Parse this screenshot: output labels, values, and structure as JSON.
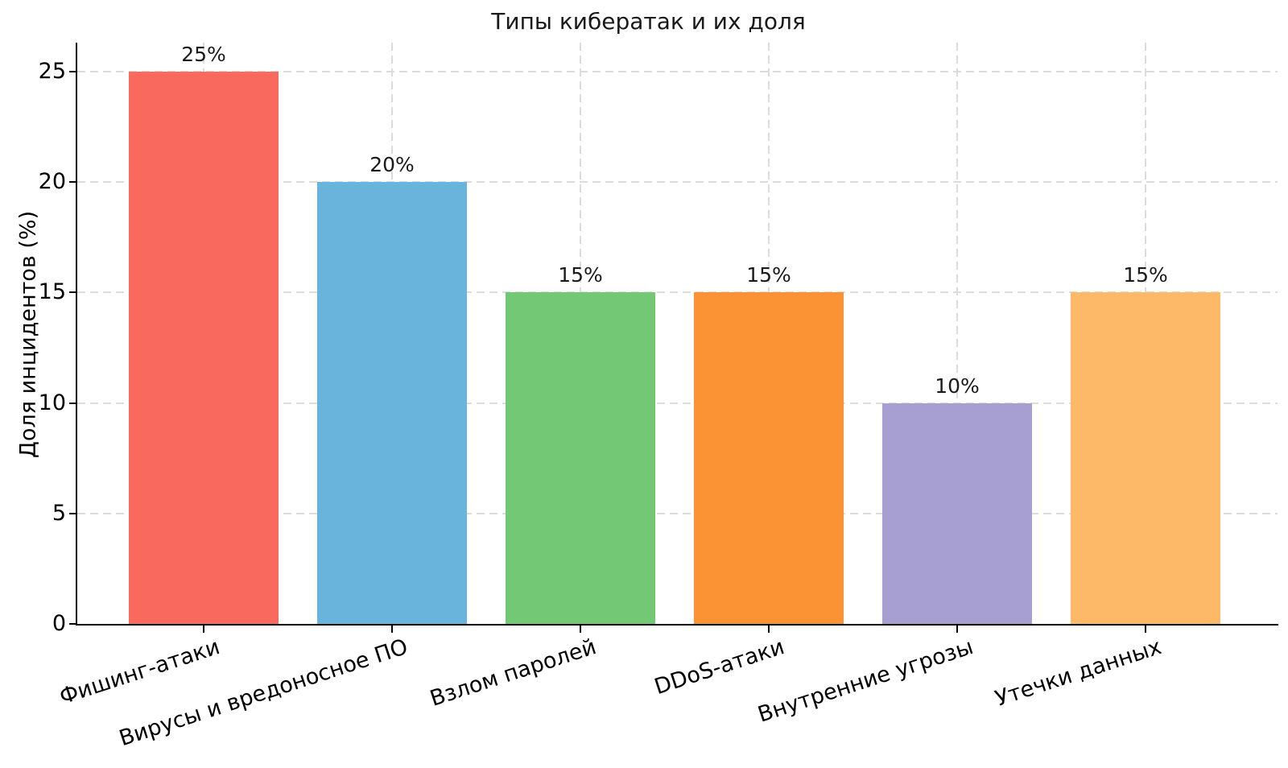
{
  "chart_data": {
    "type": "bar",
    "title": "Типы кибератак и их доля",
    "xlabel": "",
    "ylabel": "Доля инцидентов (%)",
    "categories": [
      "Фишинг-атаки",
      "Вирусы и вредоносное ПО",
      "Взлом паролей",
      "DDoS-атаки",
      "Внутренние угрозы",
      "Утечки данных"
    ],
    "values": [
      25,
      20,
      15,
      15,
      10,
      15
    ],
    "value_labels": [
      "25%",
      "20%",
      "15%",
      "15%",
      "10%",
      "15%"
    ],
    "bar_colors": [
      "#f9695d",
      "#68b4dc",
      "#73c876",
      "#fb9233",
      "#a79fd2",
      "#fdb968"
    ],
    "yticks": [
      0,
      5,
      10,
      15,
      20,
      25
    ],
    "ylim": [
      0,
      26.3
    ],
    "grid": true,
    "grid_style": "dashed",
    "grid_color": "#dcdcdc",
    "axis_color": "#000000",
    "background_color": "#ffffff",
    "x_tick_rotation_deg": 18,
    "legend": "none"
  }
}
